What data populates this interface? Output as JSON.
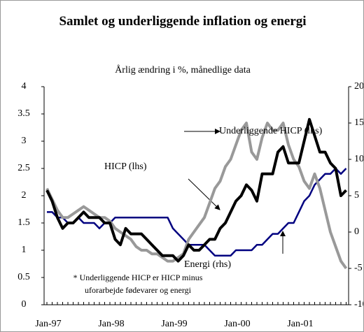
{
  "chart_data": {
    "type": "line",
    "title": "Samlet og underliggende inflation og energi",
    "subtitle": "Årlig ændring i %, månedlige data",
    "categories": [
      "Jan-97",
      null,
      null,
      null,
      null,
      null,
      null,
      null,
      null,
      null,
      null,
      null,
      "Jan-98",
      null,
      null,
      null,
      null,
      null,
      null,
      null,
      null,
      null,
      null,
      null,
      "Jan-99",
      null,
      null,
      null,
      null,
      null,
      null,
      null,
      null,
      null,
      null,
      null,
      "Jan-00",
      null,
      null,
      null,
      null,
      null,
      null,
      null,
      null,
      null,
      null,
      null,
      "Jan-01",
      null,
      null,
      null,
      null,
      null,
      null,
      null,
      null,
      null
    ],
    "series": [
      {
        "name": "Underliggende HICP (lhs)",
        "color": "#000080",
        "axis": "y",
        "values": [
          1.7,
          1.7,
          1.6,
          1.6,
          1.5,
          1.5,
          1.6,
          1.5,
          1.5,
          1.5,
          1.4,
          1.5,
          1.5,
          1.6,
          1.6,
          1.6,
          1.6,
          1.6,
          1.6,
          1.6,
          1.6,
          1.6,
          1.6,
          1.6,
          1.4,
          1.3,
          1.2,
          1.1,
          1.1,
          1.1,
          1.1,
          1.0,
          0.9,
          0.9,
          0.9,
          0.9,
          1.0,
          1.0,
          1.0,
          1.0,
          1.1,
          1.1,
          1.2,
          1.3,
          1.3,
          1.4,
          1.5,
          1.5,
          1.7,
          1.9,
          2.0,
          2.2,
          2.3,
          2.4,
          2.4,
          2.5,
          2.4,
          2.5
        ]
      },
      {
        "name": "Energi (rhs)",
        "color": "#999999",
        "axis": "y2",
        "values": [
          6,
          4.5,
          3,
          2,
          2,
          2.5,
          3,
          3.5,
          3,
          2.5,
          2,
          2,
          1.5,
          0.5,
          0,
          -0.5,
          -1,
          -2,
          -2.5,
          -2.5,
          -3,
          -3,
          -3.5,
          -4,
          -4,
          -3.5,
          -3,
          -1,
          0,
          1,
          2,
          4,
          6,
          7,
          9,
          10,
          12,
          14,
          15,
          11,
          10,
          13,
          15,
          14,
          14,
          15,
          12,
          10,
          9,
          7,
          6,
          8,
          6,
          3,
          0,
          -2,
          -4,
          -5
        ]
      },
      {
        "name": "HICP (lhs)",
        "color": "#000000",
        "axis": "y",
        "values": [
          2.1,
          1.9,
          1.6,
          1.4,
          1.5,
          1.5,
          1.6,
          1.7,
          1.6,
          1.6,
          1.6,
          1.5,
          1.5,
          1.2,
          1.1,
          1.4,
          1.3,
          1.3,
          1.3,
          1.2,
          1.1,
          1.0,
          0.9,
          0.9,
          0.9,
          0.8,
          0.9,
          1.1,
          1.0,
          1.0,
          1.1,
          1.2,
          1.2,
          1.4,
          1.5,
          1.7,
          1.9,
          2.0,
          2.2,
          2.1,
          1.9,
          2.4,
          2.4,
          2.4,
          2.8,
          2.9,
          2.6,
          2.6,
          2.6,
          3.0,
          3.4,
          3.1,
          2.8,
          2.8,
          2.6,
          2.5,
          2.0,
          2.1
        ]
      }
    ],
    "ylim": [
      0,
      4
    ],
    "yticks": [
      0,
      0.5,
      1,
      1.5,
      2,
      2.5,
      3,
      3.5,
      4
    ],
    "y2lim": [
      -10,
      20
    ],
    "y2ticks": [
      -10,
      -5,
      0,
      5,
      10,
      15,
      20
    ],
    "footnote": [
      "* Underliggende HICP er HICP minus",
      "uforarbejde fødevarer og energi"
    ]
  }
}
